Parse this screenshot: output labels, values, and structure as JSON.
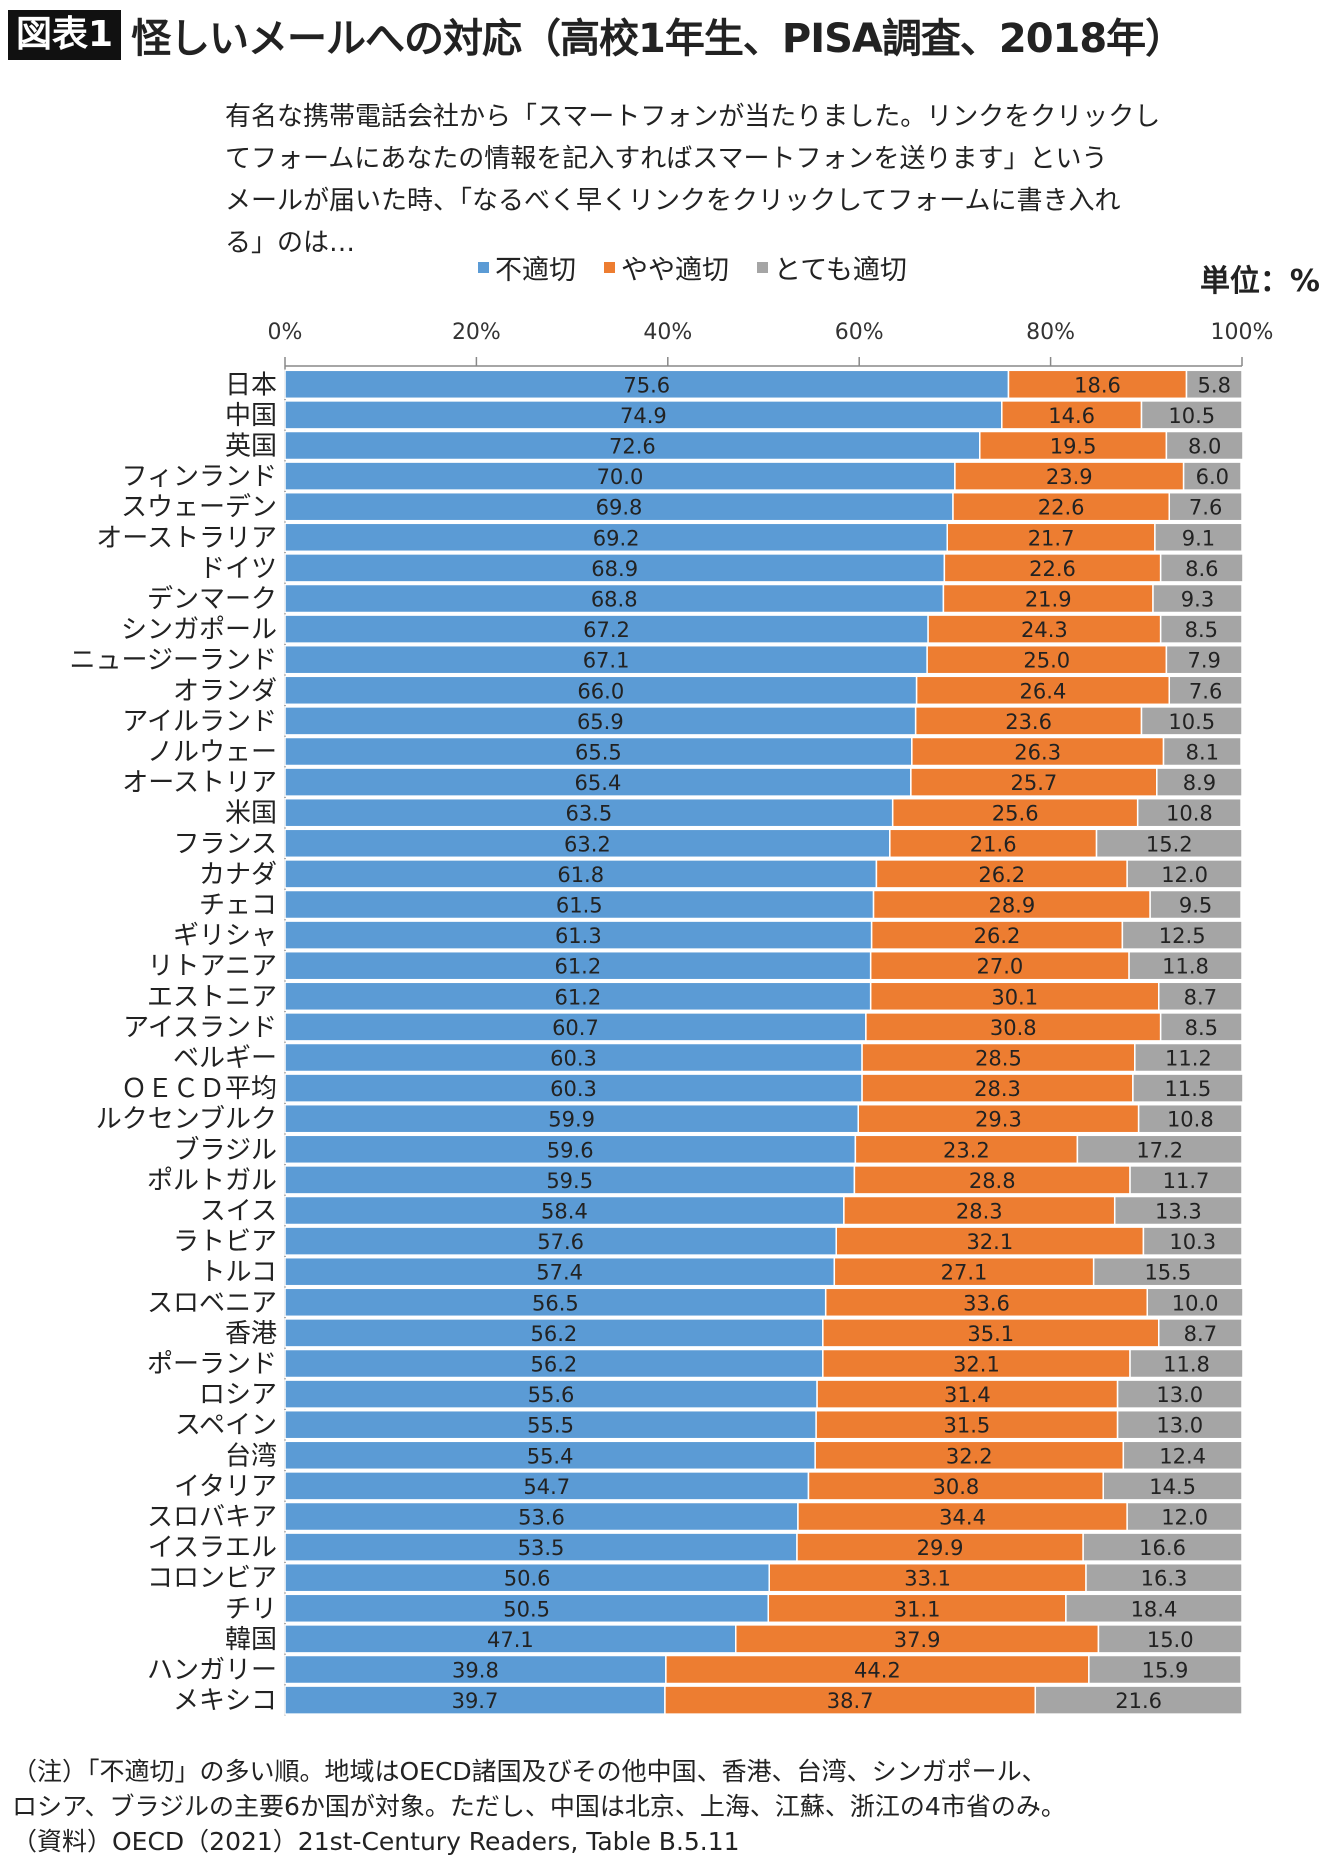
{
  "header": {
    "tag": "図表1",
    "title": "怪しいメールへの対応（高校1年生、PISA調査、2018年）"
  },
  "description": [
    "有名な携帯電話会社から「スマートフォンが当たりました。リンクをクリックし",
    "てフォームにあなたの情報を記入すればスマートフォンを送ります」という",
    "メールが届いた時、「なるべく早くリンクをクリックしてフォームに書き入れ",
    "る」のは…"
  ],
  "unit": "単位：%",
  "footnotes": [
    "（注）「不適切」の多い順。地域はOECD諸国及びその他中国、香港、台湾、シンガポール、",
    "ロシア、ブラジルの主要6か国が対象。ただし、中国は北京、上海、江蘇、浙江の4市省のみ。",
    "（資料）OECD（2021）21st-Century Readers, Table B.5.11"
  ],
  "chart_data": {
    "type": "bar",
    "orientation": "horizontal",
    "stacked": true,
    "xlim": [
      0,
      100
    ],
    "xticks": [
      "0%",
      "20%",
      "40%",
      "60%",
      "80%",
      "100%"
    ],
    "legend_position": "top",
    "categories": [
      "日本",
      "中国",
      "英国",
      "フィンランド",
      "スウェーデン",
      "オーストラリア",
      "ドイツ",
      "デンマーク",
      "シンガポール",
      "ニュージーランド",
      "オランダ",
      "アイルランド",
      "ノルウェー",
      "オーストリア",
      "米国",
      "フランス",
      "カナダ",
      "チェコ",
      "ギリシャ",
      "リトアニア",
      "エストニア",
      "アイスランド",
      "ベルギー",
      "ＯＥＣＤ平均",
      "ルクセンブルク",
      "ブラジル",
      "ポルトガル",
      "スイス",
      "ラトビア",
      "トルコ",
      "スロベニア",
      "香港",
      "ポーランド",
      "ロシア",
      "スペイン",
      "台湾",
      "イタリア",
      "スロバキア",
      "イスラエル",
      "コロンビア",
      "チリ",
      "韓国",
      "ハンガリー",
      "メキシコ"
    ],
    "series": [
      {
        "name": "不適切",
        "color": "#5b9bd5",
        "values": [
          75.6,
          74.9,
          72.6,
          70.0,
          69.8,
          69.2,
          68.9,
          68.8,
          67.2,
          67.1,
          66.0,
          65.9,
          65.5,
          65.4,
          63.5,
          63.2,
          61.8,
          61.5,
          61.3,
          61.2,
          61.2,
          60.7,
          60.3,
          60.3,
          59.9,
          59.6,
          59.5,
          58.4,
          57.6,
          57.4,
          56.5,
          56.2,
          56.2,
          55.6,
          55.5,
          55.4,
          54.7,
          53.6,
          53.5,
          50.6,
          50.5,
          47.1,
          39.8,
          39.7
        ]
      },
      {
        "name": "やや適切",
        "color": "#ed7d31",
        "values": [
          18.6,
          14.6,
          19.5,
          23.9,
          22.6,
          21.7,
          22.6,
          21.9,
          24.3,
          25.0,
          26.4,
          23.6,
          26.3,
          25.7,
          25.6,
          21.6,
          26.2,
          28.9,
          26.2,
          27.0,
          30.1,
          30.8,
          28.5,
          28.3,
          29.3,
          23.2,
          28.8,
          28.3,
          32.1,
          27.1,
          33.6,
          35.1,
          32.1,
          31.4,
          31.5,
          32.2,
          30.8,
          34.4,
          29.9,
          33.1,
          31.1,
          37.9,
          44.2,
          38.7
        ]
      },
      {
        "name": "とても適切",
        "color": "#a5a5a5",
        "values": [
          5.8,
          10.5,
          8.0,
          6.0,
          7.6,
          9.1,
          8.6,
          9.3,
          8.5,
          7.9,
          7.6,
          10.5,
          8.1,
          8.9,
          10.8,
          15.2,
          12.0,
          9.5,
          12.5,
          11.8,
          8.7,
          8.5,
          11.2,
          11.5,
          10.8,
          17.2,
          11.7,
          13.3,
          10.3,
          15.5,
          10.0,
          8.7,
          11.8,
          13.0,
          13.0,
          12.4,
          14.5,
          12.0,
          16.6,
          16.3,
          18.4,
          15.0,
          15.9,
          21.6
        ]
      }
    ]
  }
}
